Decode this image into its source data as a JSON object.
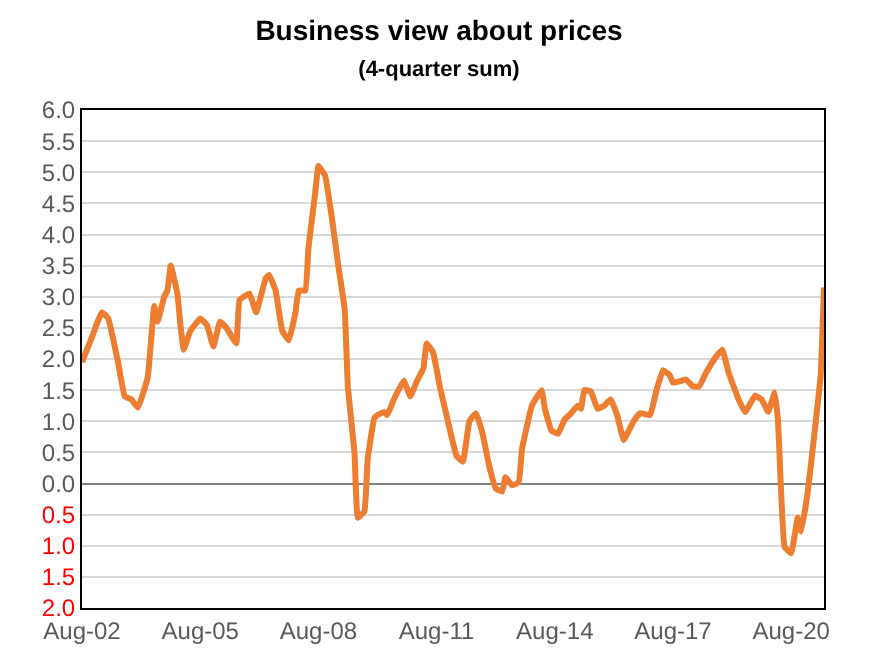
{
  "chart_data": {
    "type": "line",
    "title": "Business view about prices",
    "subtitle": "(4-quarter sum)",
    "x": [
      "2002-08",
      "2002-11",
      "2003-02",
      "2003-04",
      "2003-07",
      "2003-09",
      "2003-11",
      "2004-01",
      "2004-04",
      "2004-06",
      "2004-07",
      "2004-09",
      "2004-10",
      "2004-11",
      "2005-01",
      "2005-02",
      "2005-03",
      "2005-05",
      "2005-08",
      "2005-10",
      "2005-12",
      "2006-02",
      "2006-04",
      "2006-07",
      "2006-08",
      "2006-11",
      "2007-01",
      "2007-04",
      "2007-05",
      "2007-07",
      "2007-09",
      "2007-11",
      "2008-01",
      "2008-02",
      "2008-04",
      "2008-05",
      "2008-07",
      "2008-08",
      "2008-10",
      "2008-12",
      "2009-02",
      "2009-04",
      "2009-05",
      "2009-07",
      "2009-08",
      "2009-10",
      "2009-11",
      "2010-01",
      "2010-02",
      "2010-04",
      "2010-05",
      "2010-07",
      "2010-10",
      "2010-12",
      "2011-02",
      "2011-04",
      "2011-05",
      "2011-07",
      "2011-09",
      "2011-11",
      "2012-02",
      "2012-04",
      "2012-06",
      "2012-08",
      "2012-10",
      "2012-12",
      "2013-02",
      "2013-04",
      "2013-05",
      "2013-07",
      "2013-09",
      "2013-10",
      "2014-01",
      "2014-04",
      "2014-05",
      "2014-07",
      "2014-09",
      "2014-11",
      "2015-01",
      "2015-03",
      "2015-04",
      "2015-05",
      "2015-07",
      "2015-09",
      "2015-11",
      "2016-01",
      "2016-03",
      "2016-05",
      "2016-08",
      "2016-10",
      "2017-01",
      "2017-03",
      "2017-05",
      "2017-07",
      "2017-08",
      "2017-10",
      "2017-12",
      "2018-02",
      "2018-04",
      "2018-06",
      "2018-09",
      "2018-11",
      "2019-01",
      "2019-04",
      "2019-06",
      "2019-09",
      "2019-11",
      "2020-01",
      "2020-03",
      "2020-04",
      "2020-06",
      "2020-08",
      "2020-10",
      "2020-11",
      "2021-01",
      "2021-03",
      "2021-05",
      "2021-06"
    ],
    "series": [
      {
        "color": "#ed7d31",
        "values": [
          1.95,
          2.35,
          2.75,
          2.65,
          1.95,
          1.4,
          1.35,
          1.22,
          1.7,
          2.85,
          2.6,
          3.0,
          3.1,
          3.5,
          3.05,
          2.5,
          2.15,
          2.45,
          2.65,
          2.55,
          2.2,
          2.6,
          2.5,
          2.25,
          2.95,
          3.05,
          2.75,
          3.3,
          3.35,
          3.1,
          2.45,
          2.3,
          2.75,
          3.1,
          3.1,
          3.8,
          4.65,
          5.1,
          4.95,
          4.3,
          3.5,
          2.8,
          1.55,
          0.5,
          -0.55,
          -0.45,
          0.4,
          1.05,
          1.1,
          1.15,
          1.1,
          1.35,
          1.65,
          1.4,
          1.65,
          1.85,
          2.25,
          2.1,
          1.55,
          1.1,
          0.45,
          0.35,
          1.0,
          1.13,
          0.8,
          0.28,
          -0.08,
          -0.13,
          0.1,
          -0.03,
          0.02,
          0.55,
          1.25,
          1.5,
          1.2,
          0.85,
          0.8,
          1.03,
          1.13,
          1.25,
          1.2,
          1.5,
          1.48,
          1.2,
          1.25,
          1.35,
          1.1,
          0.7,
          1.0,
          1.13,
          1.1,
          1.5,
          1.82,
          1.74,
          1.62,
          1.64,
          1.67,
          1.56,
          1.56,
          1.77,
          2.03,
          2.15,
          1.77,
          1.35,
          1.15,
          1.41,
          1.35,
          1.15,
          1.46,
          1.0,
          -1.02,
          -1.12,
          -0.55,
          -0.77,
          -0.14,
          0.75,
          1.74,
          3.15
        ]
      }
    ],
    "xlim": [
      "2002-08",
      "2021-06"
    ],
    "xticks": [
      {
        "value": "2002-08",
        "label": "Aug-02"
      },
      {
        "value": "2005-08",
        "label": "Aug-05"
      },
      {
        "value": "2008-08",
        "label": "Aug-08"
      },
      {
        "value": "2011-08",
        "label": "Aug-11"
      },
      {
        "value": "2014-08",
        "label": "Aug-14"
      },
      {
        "value": "2017-08",
        "label": "Aug-17"
      },
      {
        "value": "2020-08",
        "label": "Aug-20"
      }
    ],
    "ylim": [
      -2,
      6
    ],
    "yticks": [
      {
        "value": 6,
        "label": "6.0"
      },
      {
        "value": 5.5,
        "label": "5.5"
      },
      {
        "value": 5,
        "label": "5.0"
      },
      {
        "value": 4.5,
        "label": "4.5"
      },
      {
        "value": 4,
        "label": "4.0"
      },
      {
        "value": 3.5,
        "label": "3.5"
      },
      {
        "value": 3,
        "label": "3.0"
      },
      {
        "value": 2.5,
        "label": "2.5"
      },
      {
        "value": 2,
        "label": "2.0"
      },
      {
        "value": 1.5,
        "label": "1.5"
      },
      {
        "value": 1,
        "label": "1.0"
      },
      {
        "value": 0.5,
        "label": "0.5"
      },
      {
        "value": 0,
        "label": "0.0"
      },
      {
        "value": -0.5,
        "label": "0.5"
      },
      {
        "value": -1,
        "label": "1.0"
      },
      {
        "value": -1.5,
        "label": "1.5"
      },
      {
        "value": -2,
        "label": "2.0"
      }
    ],
    "grid": "y",
    "marker": "none",
    "line_style": "solid"
  }
}
